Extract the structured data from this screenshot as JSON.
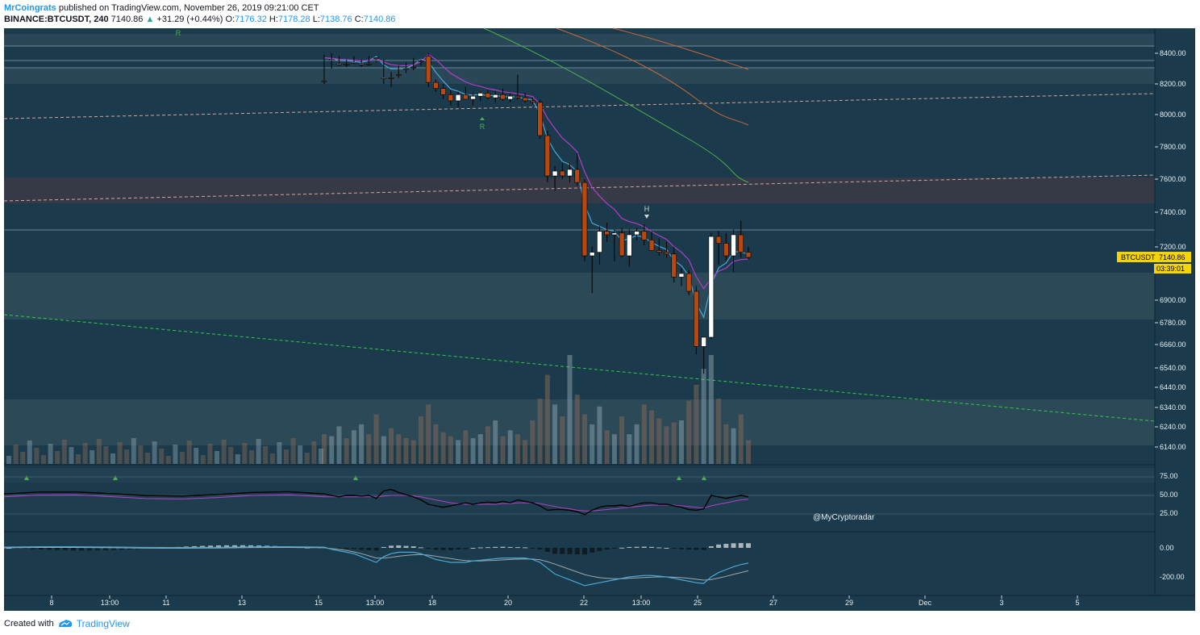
{
  "header": {
    "author": "MrCoingrats",
    "published_text": "published on TradingView.com, November 26, 2019 09:21:00 CET",
    "symbol": "BINANCE:BTCUSDT, 240",
    "last": "7140.86",
    "arrow": "▲",
    "change": "+31.29 (+0.44%)",
    "o_label": "O:",
    "o_value": "7176.32",
    "h_label": "H:",
    "h_value": "7178.28",
    "l_label": "L:",
    "l_value": "7138.76",
    "c_label": "C:",
    "c_value": "7140.86"
  },
  "footer": {
    "created_with": "Created with",
    "brand": "TradingView"
  },
  "colors": {
    "background": "#1b3a4b",
    "candle_up": "#ffffff",
    "candle_down": "#b8480f",
    "ema_fast": "#4aa8d8",
    "ema_mid": "#b23fc9",
    "ma_green": "#4caf50",
    "ma_orange": "#c8693a",
    "trend_green": "#2ecc40",
    "price_badge": "#f5d400"
  },
  "chart_data": {
    "type": "candlestick",
    "symbol": "BTCUSDT",
    "price_label": "7140.86",
    "countdown": "03:39:01",
    "watermark": "@MyCryptoradar",
    "y_ticks": [
      "8400.00",
      "8200.00",
      "8000.00",
      "7800.00",
      "7600.00",
      "7400.00",
      "7200.00",
      "6900.00",
      "6780.00",
      "6660.00",
      "6540.00",
      "6440.00",
      "6340.00",
      "6240.00",
      "6140.00"
    ],
    "x_ticks": [
      "8",
      "13:00",
      "11",
      "13",
      "15",
      "13:00",
      "18",
      "20",
      "22",
      "13:00",
      "25",
      "27",
      "29",
      "Dec",
      "3",
      "5"
    ],
    "rsi_ticks": [
      "75.00",
      "50.00",
      "25.00"
    ],
    "macd_ticks": [
      "0.00",
      "-200.00"
    ],
    "markers": [
      {
        "text": "R",
        "date": "Nov 7"
      },
      {
        "text": "R",
        "date": "Nov 19"
      },
      {
        "text": "H",
        "date": "Nov 23"
      }
    ],
    "ohlc": [
      [
        8580,
        8600,
        8410,
        8430
      ],
      [
        8430,
        8500,
        8400,
        8440
      ],
      [
        8440,
        8480,
        8420,
        8470
      ],
      [
        8470,
        8490,
        8440,
        8450
      ],
      [
        8450,
        8470,
        8420,
        8460
      ],
      [
        8460,
        8490,
        8440,
        8470
      ],
      [
        8470,
        8480,
        8420,
        8430
      ],
      [
        8430,
        8460,
        8350,
        8380
      ],
      [
        8380,
        8600,
        8360,
        8560
      ],
      [
        8560,
        8620,
        8520,
        8540
      ],
      [
        8540,
        8560,
        8480,
        8500
      ],
      [
        8500,
        8530,
        8460,
        8490
      ],
      [
        8490,
        8510,
        8430,
        8450
      ],
      [
        8450,
        8480,
        8360,
        8380
      ],
      [
        8380,
        8400,
        8180,
        8210
      ],
      [
        8210,
        8230,
        8150,
        8170
      ],
      [
        8170,
        8200,
        8100,
        8130
      ],
      [
        8130,
        8160,
        8060,
        8090
      ],
      [
        8090,
        8150,
        8050,
        8130
      ],
      [
        8130,
        8180,
        8100,
        8100
      ],
      [
        8100,
        8140,
        8060,
        8120
      ],
      [
        8120,
        8150,
        8090,
        8140
      ],
      [
        8140,
        8160,
        8100,
        8110
      ],
      [
        8110,
        8150,
        8080,
        8130
      ],
      [
        8130,
        8170,
        8090,
        8100
      ],
      [
        8100,
        8140,
        8080,
        8120
      ],
      [
        8120,
        8260,
        8100,
        8110
      ],
      [
        8110,
        8140,
        8080,
        8090
      ],
      [
        8090,
        8110,
        8070,
        8080
      ],
      [
        8080,
        8100,
        7850,
        7870
      ],
      [
        7870,
        7900,
        7580,
        7620
      ],
      [
        7620,
        7680,
        7530,
        7650
      ],
      [
        7650,
        7700,
        7600,
        7620
      ],
      [
        7620,
        7700,
        7580,
        7660
      ],
      [
        7660,
        7760,
        7560,
        7580
      ],
      [
        7580,
        7600,
        7120,
        7150
      ],
      [
        7150,
        7200,
        6940,
        7170
      ],
      [
        7170,
        7320,
        7100,
        7290
      ],
      [
        7290,
        7340,
        7230,
        7270
      ],
      [
        7270,
        7300,
        7120,
        7280
      ],
      [
        7280,
        7310,
        7140,
        7150
      ],
      [
        7150,
        7300,
        7090,
        7270
      ],
      [
        7270,
        7310,
        7240,
        7290
      ],
      [
        7290,
        7330,
        7210,
        7240
      ],
      [
        7240,
        7290,
        7180,
        7180
      ],
      [
        7180,
        7250,
        7150,
        7170
      ],
      [
        7170,
        7230,
        7140,
        7160
      ],
      [
        7160,
        7200,
        7000,
        7030
      ],
      [
        7030,
        7080,
        6980,
        7050
      ],
      [
        7050,
        7070,
        6930,
        6950
      ],
      [
        6950,
        6980,
        6610,
        6650
      ],
      [
        6650,
        6700,
        6510,
        6700
      ],
      [
        6700,
        7280,
        6690,
        7260
      ],
      [
        7260,
        7290,
        7100,
        7220
      ],
      [
        7220,
        7280,
        7120,
        7150
      ],
      [
        7150,
        7300,
        7060,
        7270
      ],
      [
        7270,
        7350,
        7140,
        7170
      ],
      [
        7170,
        7200,
        7130,
        7140.86
      ]
    ],
    "volume_series": [
      {
        "name": "volume",
        "values": [
          30,
          28,
          38,
          26,
          34,
          40,
          30,
          50,
          28,
          36,
          30,
          26,
          24,
          48,
          60,
          40,
          32,
          28,
          24,
          34,
          26,
          30,
          38,
          44,
          28,
          34,
          30,
          24,
          44,
          66,
          90,
          60,
          48,
          110,
          70,
          50,
          40,
          58,
          34,
          30,
          48,
          30,
          40,
          60,
          54,
          46,
          38,
          42,
          44,
          64,
          80,
          96,
          110,
          66,
          40,
          36,
          50,
          24
        ]
      }
    ],
    "rsi_series": [
      {
        "name": "rsi",
        "values": [
          52,
          50,
          48,
          50,
          50,
          49,
          50,
          46,
          56,
          58,
          54,
          51,
          48,
          44,
          38,
          36,
          34,
          36,
          38,
          40,
          38,
          40,
          41,
          40,
          42,
          40,
          44,
          42,
          40,
          36,
          30,
          31,
          31,
          30,
          28,
          24,
          30,
          34,
          36,
          36,
          37,
          35,
          38,
          40,
          40,
          38,
          38,
          36,
          34,
          31,
          30,
          32,
          50,
          48,
          46,
          48,
          50,
          48
        ]
      },
      {
        "name": "rsi_ma",
        "values": [
          48,
          48,
          48,
          48,
          48,
          48,
          48,
          48,
          49,
          50,
          50,
          50,
          49,
          48,
          46,
          44,
          42,
          40,
          39,
          38,
          38,
          38,
          38,
          38,
          39,
          39,
          40,
          40,
          40,
          39,
          37,
          35,
          33,
          32,
          30,
          29,
          29,
          30,
          31,
          32,
          33,
          34,
          35,
          36,
          37,
          37,
          37,
          37,
          36,
          35,
          34,
          33,
          36,
          38,
          40,
          42,
          44,
          45
        ]
      }
    ],
    "macd_series": [
      {
        "name": "macd",
        "values": [
          5,
          -10,
          -20,
          -30,
          -40,
          -60,
          -80,
          -100,
          -60,
          -40,
          -30,
          -30,
          -30,
          -40,
          -60,
          -80,
          -90,
          -100,
          -100,
          -100,
          -90,
          -85,
          -80,
          -75,
          -70,
          -70,
          -70,
          -70,
          -80,
          -100,
          -140,
          -180,
          -200,
          -220,
          -240,
          -260,
          -250,
          -240,
          -230,
          -220,
          -210,
          -200,
          -195,
          -190,
          -190,
          -195,
          -200,
          -210,
          -220,
          -230,
          -240,
          -245,
          -200,
          -170,
          -150,
          -130,
          -115,
          -105
        ]
      },
      {
        "name": "signal",
        "values": [
          0,
          -5,
          -10,
          -18,
          -28,
          -40,
          -55,
          -70,
          -70,
          -65,
          -58,
          -52,
          -48,
          -46,
          -50,
          -58,
          -66,
          -74,
          -82,
          -88,
          -90,
          -90,
          -88,
          -86,
          -83,
          -80,
          -78,
          -76,
          -77,
          -82,
          -95,
          -112,
          -130,
          -148,
          -166,
          -184,
          -196,
          -205,
          -210,
          -212,
          -212,
          -210,
          -207,
          -204,
          -201,
          -200,
          -200,
          -202,
          -205,
          -210,
          -216,
          -222,
          -218,
          -208,
          -196,
          -183,
          -170,
          -158
        ]
      }
    ]
  }
}
